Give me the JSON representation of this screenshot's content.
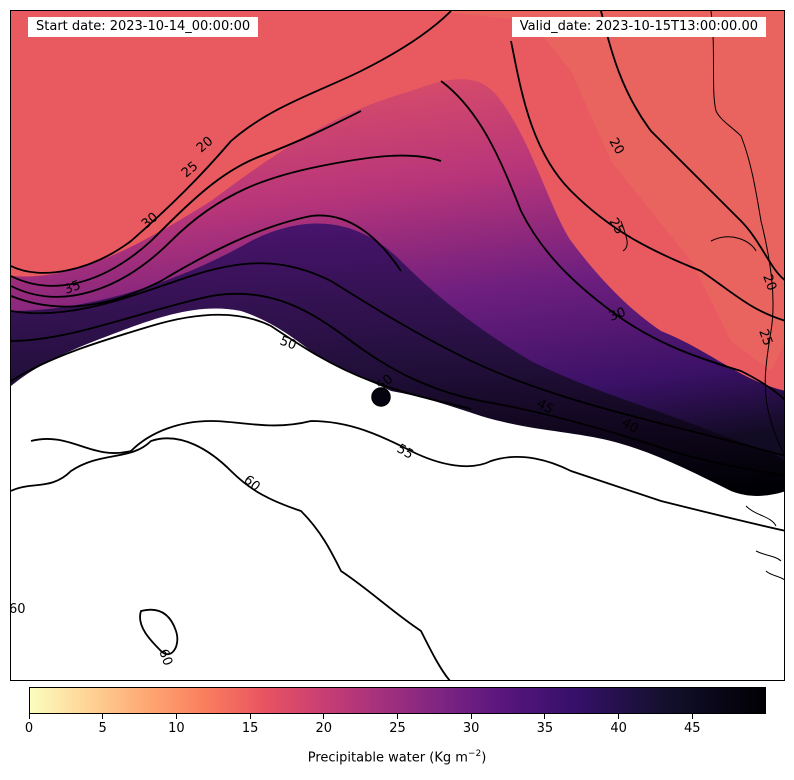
{
  "header": {
    "start_date": "Start date: 2023-10-14_00:00:00",
    "valid_date": "Valid_date: 2023-10-15T13:00:00.00"
  },
  "colorbar": {
    "title": "Precipitable water (Kg m",
    "title_superscript": "−2",
    "title_suffix": ")",
    "colormap": "magma_r",
    "range": [
      0,
      50
    ],
    "ticks": [
      "0",
      "5",
      "10",
      "15",
      "20",
      "25",
      "30",
      "35",
      "40",
      "45"
    ]
  },
  "contours": {
    "levels": [
      20,
      25,
      30,
      35,
      40,
      45,
      50,
      55,
      60
    ],
    "labels": [
      {
        "text": "20"
      },
      {
        "text": "25"
      },
      {
        "text": "30"
      },
      {
        "text": "35"
      },
      {
        "text": "50"
      },
      {
        "text": "50"
      },
      {
        "text": "55"
      },
      {
        "text": "60"
      },
      {
        "text": "45"
      },
      {
        "text": "40"
      },
      {
        "text": "30"
      },
      {
        "text": "25"
      },
      {
        "text": "20"
      },
      {
        "text": "25"
      },
      {
        "text": "20"
      },
      {
        "text": "60"
      },
      {
        "text": "60"
      }
    ]
  },
  "colors": {
    "low_moisture": "#e9575f",
    "mid_moisture": "#6a1f7c",
    "high_moisture": "#0a0716",
    "saturated": "#ffffff"
  }
}
